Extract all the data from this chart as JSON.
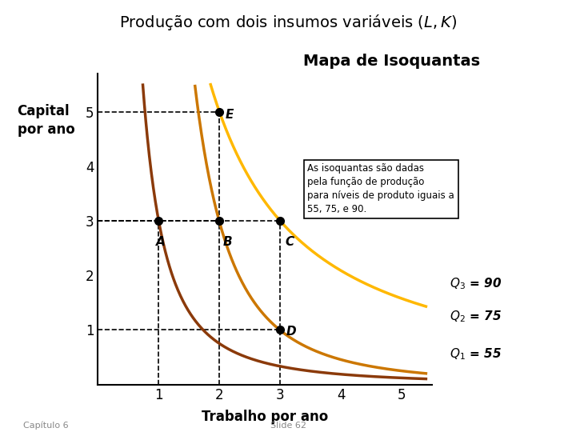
{
  "title": "Produção com dois insumos variáveis ($L,K$)",
  "xlabel": "Trabalho por ano",
  "ylabel": "Capital\npor ano",
  "xlim": [
    0,
    5.5
  ],
  "ylim": [
    0,
    5.7
  ],
  "xticks": [
    1,
    2,
    3,
    4,
    5
  ],
  "yticks": [
    1,
    2,
    3,
    4,
    5
  ],
  "q1": {
    "label": "$Q_1$ = 55",
    "color": "#8B3A0A"
  },
  "q2": {
    "label": "$Q_2$ = 75",
    "color": "#CC7700"
  },
  "q3": {
    "label": "$Q_3$ = 90",
    "color": "#FFB800"
  },
  "points": {
    "A": [
      1,
      3
    ],
    "B": [
      2,
      3
    ],
    "C": [
      3,
      3
    ],
    "D": [
      3,
      1
    ],
    "E": [
      2,
      5
    ]
  },
  "annotation_box_text": "As isoquantas são dadas\npela função de produção\npara níveis de produto iguais a\n55, 75, e 90.",
  "mapa_text": "Mapa de Isoquantas",
  "footer_left": "Capítulo 6",
  "footer_right": "Slide 62",
  "q1_curve": {
    "a": 3.0,
    "b": 2.709
  },
  "q2_curve": {
    "a": 19.49,
    "b": 2.709
  },
  "q3_curve": {
    "a": 11.97,
    "b": 1.2598
  }
}
